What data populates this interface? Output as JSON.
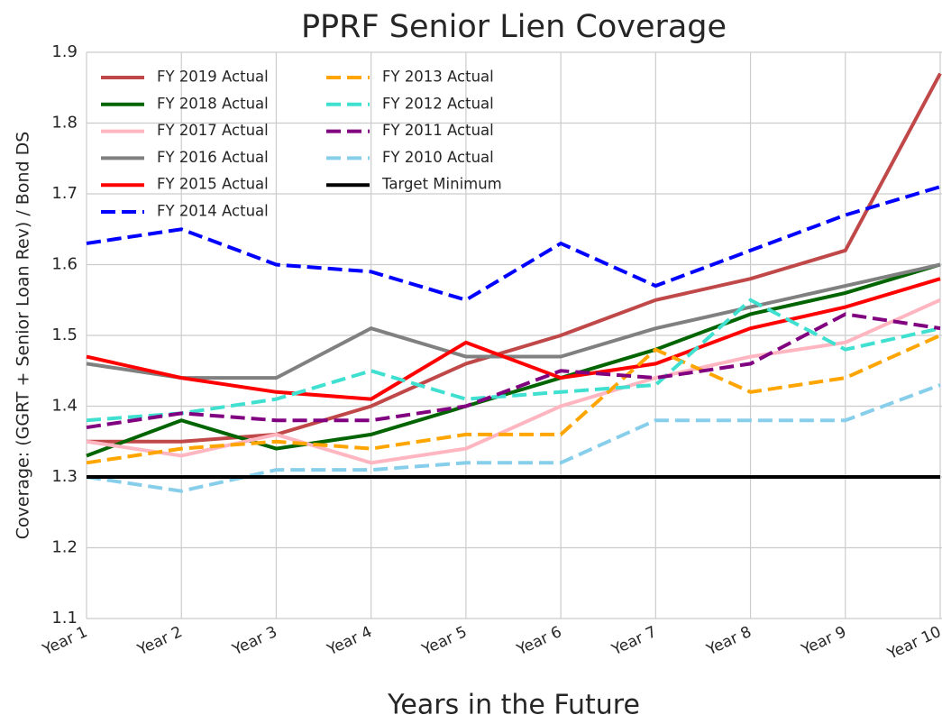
{
  "chart_data": {
    "type": "line",
    "title": "PPRF Senior Lien Coverage",
    "x_label": "Years in the Future",
    "y_label": "Coverage:  (GGRT + Senior Loan Rev) / Bond DS",
    "categories": [
      "Year 1",
      "Year 2",
      "Year 3",
      "Year 4",
      "Year 5",
      "Year 6",
      "Year 7",
      "Year 8",
      "Year 9",
      "Year 10"
    ],
    "ylim": [
      1.1,
      1.9
    ],
    "yticks": [
      1.1,
      1.2,
      1.3,
      1.4,
      1.5,
      1.6,
      1.7,
      1.8,
      1.9
    ],
    "grid": true,
    "legend": "upper left",
    "series": [
      {
        "name": "FY 2019 Actual",
        "color": "#c04848",
        "dashed": false,
        "values": [
          1.35,
          1.35,
          1.36,
          1.4,
          1.46,
          1.5,
          1.55,
          1.58,
          1.62,
          1.87
        ]
      },
      {
        "name": "FY 2018 Actual",
        "color": "#006400",
        "dashed": false,
        "values": [
          1.33,
          1.38,
          1.34,
          1.36,
          1.4,
          1.44,
          1.48,
          1.53,
          1.56,
          1.6
        ]
      },
      {
        "name": "FY 2017 Actual",
        "color": "#ffb6c1",
        "dashed": false,
        "values": [
          1.35,
          1.33,
          1.36,
          1.32,
          1.34,
          1.4,
          1.44,
          1.47,
          1.49,
          1.55
        ]
      },
      {
        "name": "FY 2016 Actual",
        "color": "#808080",
        "dashed": false,
        "values": [
          1.46,
          1.44,
          1.44,
          1.51,
          1.47,
          1.47,
          1.51,
          1.54,
          1.57,
          1.6
        ]
      },
      {
        "name": "FY 2015 Actual",
        "color": "#ff0000",
        "dashed": false,
        "values": [
          1.47,
          1.44,
          1.42,
          1.41,
          1.49,
          1.44,
          1.46,
          1.51,
          1.54,
          1.58
        ]
      },
      {
        "name": "FY 2014 Actual",
        "color": "#0000ff",
        "dashed": true,
        "values": [
          1.63,
          1.65,
          1.6,
          1.59,
          1.55,
          1.63,
          1.57,
          1.62,
          1.67,
          1.71
        ]
      },
      {
        "name": "FY 2013 Actual",
        "color": "#ffa500",
        "dashed": true,
        "values": [
          1.32,
          1.34,
          1.35,
          1.34,
          1.36,
          1.36,
          1.48,
          1.42,
          1.44,
          1.5
        ]
      },
      {
        "name": "FY 2012 Actual",
        "color": "#40e0d0",
        "dashed": true,
        "values": [
          1.38,
          1.39,
          1.41,
          1.45,
          1.41,
          1.42,
          1.43,
          1.55,
          1.48,
          1.51
        ]
      },
      {
        "name": "FY 2011 Actual",
        "color": "#800080",
        "dashed": true,
        "values": [
          1.37,
          1.39,
          1.38,
          1.38,
          1.4,
          1.45,
          1.44,
          1.46,
          1.53,
          1.51
        ]
      },
      {
        "name": "FY 2010 Actual",
        "color": "#87ceeb",
        "dashed": true,
        "values": [
          1.3,
          1.28,
          1.31,
          1.31,
          1.32,
          1.32,
          1.38,
          1.38,
          1.38,
          1.43
        ]
      },
      {
        "name": "Target Minimum",
        "color": "#000000",
        "dashed": false,
        "values": [
          1.3,
          1.3,
          1.3,
          1.3,
          1.3,
          1.3,
          1.3,
          1.3,
          1.3,
          1.3
        ]
      }
    ]
  }
}
